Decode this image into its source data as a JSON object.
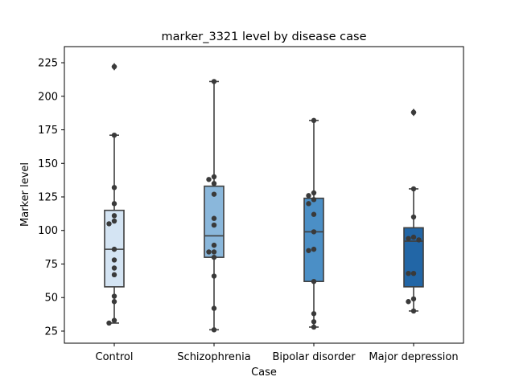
{
  "chart_data": {
    "type": "box",
    "title": "marker_3321 level by disease case",
    "xlabel": "Case",
    "ylabel": "Marker level",
    "categories": [
      "Control",
      "Schizophrenia",
      "Bipolar disorder",
      "Major depression"
    ],
    "ylim": [
      16,
      237
    ],
    "yticks": [
      25,
      50,
      75,
      100,
      125,
      150,
      175,
      200,
      225
    ],
    "grid": false,
    "legend": "none",
    "colors": [
      "#d4e4f3",
      "#8ab7db",
      "#4b8fc6",
      "#2266a6"
    ],
    "outlier_marker": "diamond",
    "boxes": [
      {
        "category": "Control",
        "whisker_low": 31,
        "q1": 58,
        "median": 86,
        "q3": 115,
        "whisker_high": 171,
        "outliers": [
          222
        ]
      },
      {
        "category": "Schizophrenia",
        "whisker_low": 26,
        "q1": 80,
        "median": 96,
        "q3": 133,
        "whisker_high": 211,
        "outliers": []
      },
      {
        "category": "Bipolar disorder",
        "whisker_low": 28,
        "q1": 62,
        "median": 99,
        "q3": 124,
        "whisker_high": 182,
        "outliers": []
      },
      {
        "category": "Major depression",
        "whisker_low": 40,
        "q1": 58,
        "median": 92,
        "q3": 102,
        "whisker_high": 131,
        "outliers": [
          188
        ]
      }
    ],
    "points": [
      {
        "category": "Control",
        "values": [
          222,
          171,
          132,
          120,
          111,
          107,
          105,
          86,
          78,
          72,
          67,
          51,
          47,
          33,
          31
        ]
      },
      {
        "category": "Schizophrenia",
        "values": [
          211,
          140,
          138,
          135,
          127,
          109,
          104,
          89,
          84,
          84,
          80,
          66,
          42,
          26
        ]
      },
      {
        "category": "Bipolar disorder",
        "values": [
          182,
          128,
          126,
          123,
          120,
          112,
          99,
          86,
          85,
          62,
          38,
          32,
          28
        ]
      },
      {
        "category": "Major depression",
        "values": [
          188,
          131,
          110,
          95,
          94,
          93,
          68,
          68,
          49,
          47,
          40
        ]
      }
    ]
  }
}
